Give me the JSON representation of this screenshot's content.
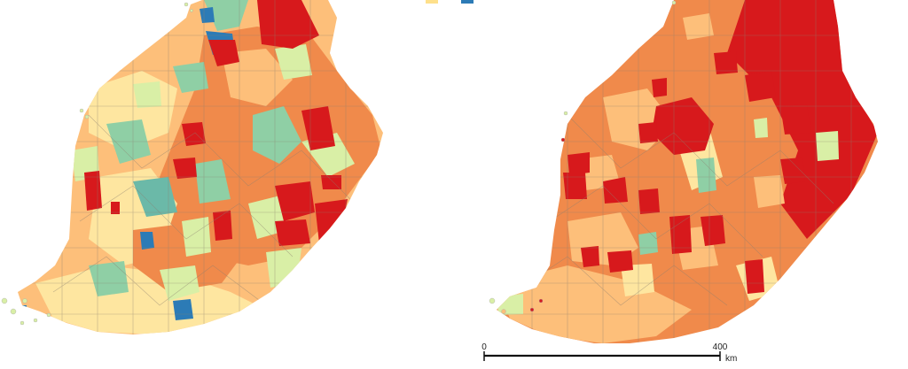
{
  "legend": {
    "items": [
      {
        "label": "",
        "color": "#fee08b"
      },
      {
        "label": "",
        "color": "#2c7bb6"
      }
    ]
  },
  "palette": {
    "dark_red": "#d7191c",
    "orange": "#f08a4b",
    "light_orange": "#fdbf7a",
    "pale_yellow": "#fee6a0",
    "pale_green": "#d9efa6",
    "green": "#8fcfa5",
    "teal": "#6bb9a8",
    "blue": "#2c7bb6",
    "border": "#8c8070"
  },
  "scalebar": {
    "start_label": "0",
    "end_label": "400",
    "unit": "km"
  }
}
